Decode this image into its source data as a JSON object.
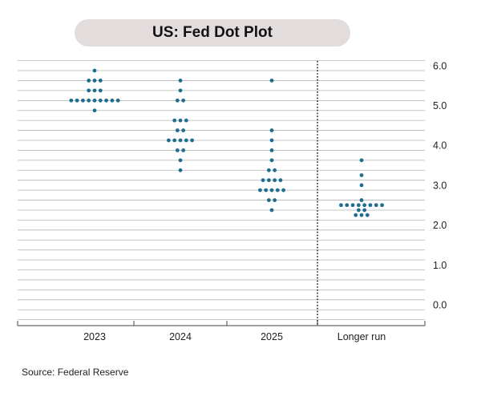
{
  "title": "US: Fed Dot Plot",
  "source": "Source: Federal Reserve",
  "colors": {
    "dot": "#1f6e8f",
    "major_grid": "#555555",
    "minor_grid": "#b5b5b5",
    "title_bg": "#e2dcdc"
  },
  "chart_data": {
    "type": "scatter",
    "title": "US: Fed Dot Plot",
    "xlabel": "",
    "ylabel": "",
    "categories": [
      "2023",
      "2024",
      "2025",
      "Longer run"
    ],
    "ylim": [
      -0.375,
      6.125
    ],
    "yticks": [
      "0.0",
      "1.0",
      "2.0",
      "3.0",
      "4.0",
      "5.0",
      "6.0"
    ],
    "y_axis_side": "right",
    "grid": true,
    "grid_step": 0.25,
    "divider_before": "Longer run",
    "dots": [
      {
        "category": "2023",
        "value": 5.875,
        "count": 1
      },
      {
        "category": "2023",
        "value": 5.625,
        "count": 3
      },
      {
        "category": "2023",
        "value": 5.375,
        "count": 3
      },
      {
        "category": "2023",
        "value": 5.125,
        "count": 9
      },
      {
        "category": "2023",
        "value": 4.875,
        "count": 1
      },
      {
        "category": "2024",
        "value": 5.625,
        "count": 1
      },
      {
        "category": "2024",
        "value": 5.375,
        "count": 1
      },
      {
        "category": "2024",
        "value": 5.125,
        "count": 2
      },
      {
        "category": "2024",
        "value": 4.625,
        "count": 3
      },
      {
        "category": "2024",
        "value": 4.375,
        "count": 2
      },
      {
        "category": "2024",
        "value": 4.125,
        "count": 5
      },
      {
        "category": "2024",
        "value": 3.875,
        "count": 2
      },
      {
        "category": "2024",
        "value": 3.625,
        "count": 1
      },
      {
        "category": "2024",
        "value": 3.375,
        "count": 1
      },
      {
        "category": "2025",
        "value": 5.625,
        "count": 1
      },
      {
        "category": "2025",
        "value": 4.375,
        "count": 1
      },
      {
        "category": "2025",
        "value": 4.125,
        "count": 1
      },
      {
        "category": "2025",
        "value": 3.875,
        "count": 1
      },
      {
        "category": "2025",
        "value": 3.625,
        "count": 1
      },
      {
        "category": "2025",
        "value": 3.375,
        "count": 2
      },
      {
        "category": "2025",
        "value": 3.125,
        "count": 4
      },
      {
        "category": "2025",
        "value": 2.875,
        "count": 5
      },
      {
        "category": "2025",
        "value": 2.625,
        "count": 2
      },
      {
        "category": "2025",
        "value": 2.375,
        "count": 1
      },
      {
        "category": "Longer run",
        "value": 3.625,
        "count": 1
      },
      {
        "category": "Longer run",
        "value": 3.25,
        "count": 1
      },
      {
        "category": "Longer run",
        "value": 3.0,
        "count": 1
      },
      {
        "category": "Longer run",
        "value": 2.625,
        "count": 1
      },
      {
        "category": "Longer run",
        "value": 2.5,
        "count": 8
      },
      {
        "category": "Longer run",
        "value": 2.375,
        "count": 2
      },
      {
        "category": "Longer run",
        "value": 2.25,
        "count": 3
      }
    ]
  }
}
